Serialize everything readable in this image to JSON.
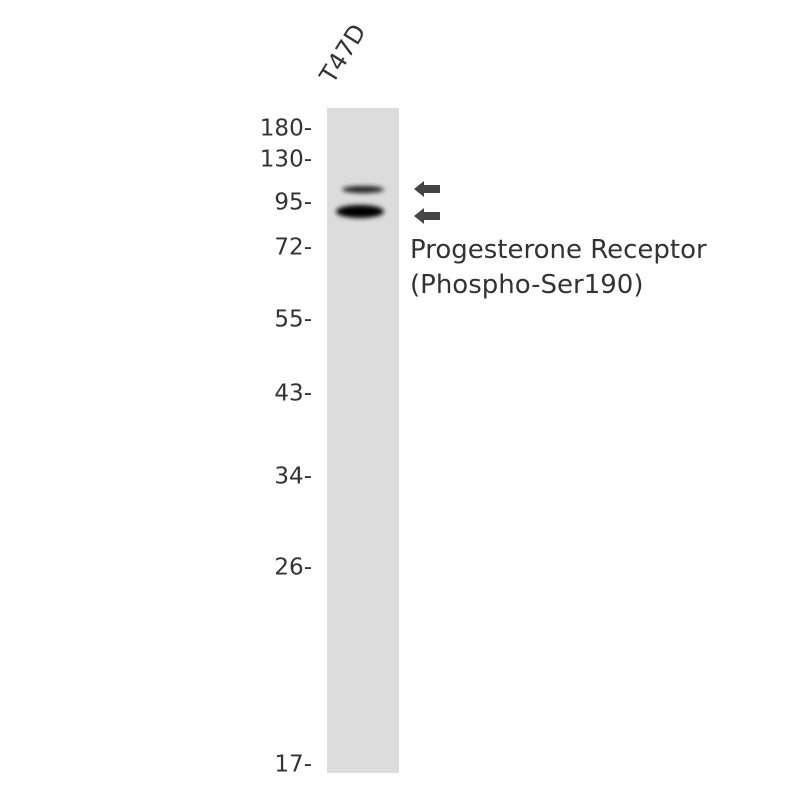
{
  "lane_label": "T47D",
  "markers": [
    {
      "label": "180-",
      "kda": 180
    },
    {
      "label": "130-",
      "kda": 130
    },
    {
      "label": "95-",
      "kda": 95
    },
    {
      "label": "72-",
      "kda": 72
    },
    {
      "label": "55-",
      "kda": 55
    },
    {
      "label": "43-",
      "kda": 43
    },
    {
      "label": "34-",
      "kda": 34
    },
    {
      "label": "26-",
      "kda": 26
    },
    {
      "label": "17-",
      "kda": 17
    }
  ],
  "target": {
    "line1": "Progesterone Receptor",
    "line2": "(Phospho-Ser190)"
  },
  "colors": {
    "lane": "#dcdcdc",
    "band": "#000000",
    "arrow": "#444444"
  }
}
